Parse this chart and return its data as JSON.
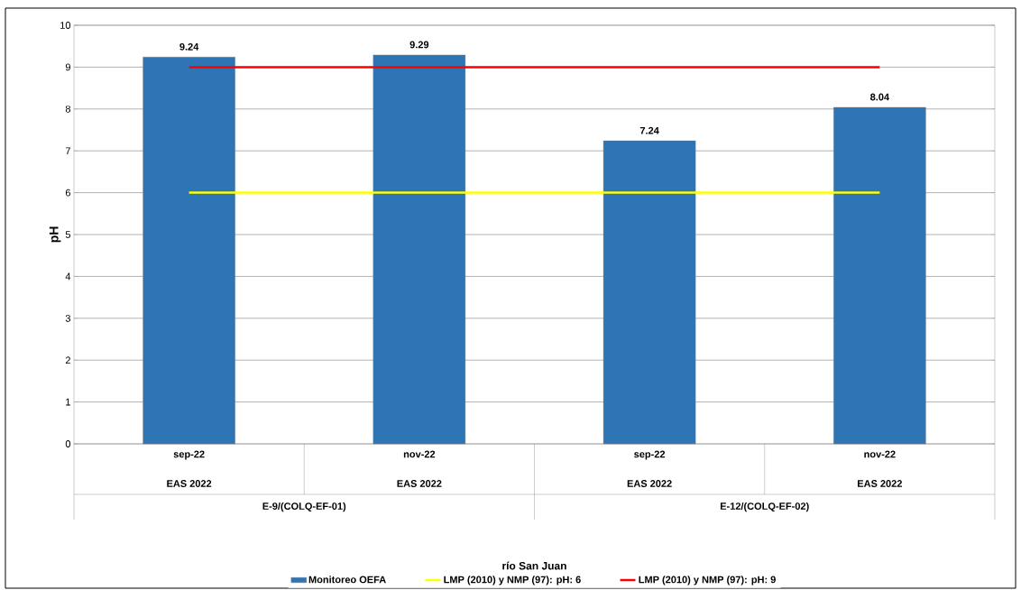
{
  "chart_data": {
    "type": "bar",
    "ylabel": "pH",
    "legend_title": "río San Juan",
    "categories": [
      "sep-22",
      "nov-22",
      "sep-22",
      "nov-22"
    ],
    "series": [
      {
        "name": "Monitoreo OEFA",
        "color": "#2e75b6",
        "values": [
          9.24,
          9.29,
          7.24,
          8.04
        ]
      }
    ],
    "annotations": [
      "EAS 2022",
      "EAS 2022",
      "EAS 2022",
      "EAS 2022",
      "E-9/(COLQ-EF-01)",
      "E-12/(COLQ-EF-02)"
    ],
    "ref_lines": [
      {
        "axis": "y",
        "value": 6,
        "label": "LMP (2010) y NMP (97): pH: 6",
        "color": "#ffff00"
      },
      {
        "axis": "y",
        "value": 9,
        "label": "LMP (2010) y NMP (97): pH: 9",
        "color": "#ff0000"
      }
    ],
    "ylim": [
      0,
      10
    ],
    "yticks": [
      0,
      1,
      2,
      3,
      4,
      5,
      6,
      7,
      8,
      9,
      10
    ],
    "grid": "y",
    "legend": "bottom",
    "data_labels": true
  }
}
